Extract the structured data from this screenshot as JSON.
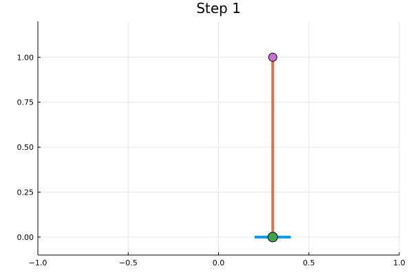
{
  "chart_data": {
    "type": "line",
    "title": "Step 1",
    "xlabel": "",
    "ylabel": "",
    "xlim": [
      -1,
      1
    ],
    "ylim": [
      -0.1,
      1.2
    ],
    "grid": true,
    "legend": "none",
    "x_ticks": [
      {
        "value": -1,
        "label": "−1.0"
      },
      {
        "value": -0.5,
        "label": "−0.5"
      },
      {
        "value": 0,
        "label": "0.0"
      },
      {
        "value": 0.5,
        "label": "0.5"
      },
      {
        "value": 1,
        "label": "1.0"
      }
    ],
    "y_ticks": [
      {
        "value": 0,
        "label": "0.00"
      },
      {
        "value": 0.25,
        "label": "0.25"
      },
      {
        "value": 0.5,
        "label": "0.50"
      },
      {
        "value": 0.75,
        "label": "0.75"
      },
      {
        "value": 1,
        "label": "1.00"
      }
    ],
    "series": [
      {
        "kind": "line",
        "color": "#009af9",
        "x": [
          0.2,
          0.4
        ],
        "y": [
          0,
          0
        ]
      },
      {
        "kind": "line",
        "color": "#e26f46",
        "x": [
          0.3,
          0.3
        ],
        "y": [
          0,
          1
        ]
      },
      {
        "kind": "point",
        "color": "#3da44d",
        "x": [
          0.3
        ],
        "y": [
          0
        ]
      },
      {
        "kind": "point",
        "color": "#c271d2",
        "x": [
          0.3
        ],
        "y": [
          1
        ]
      }
    ]
  }
}
